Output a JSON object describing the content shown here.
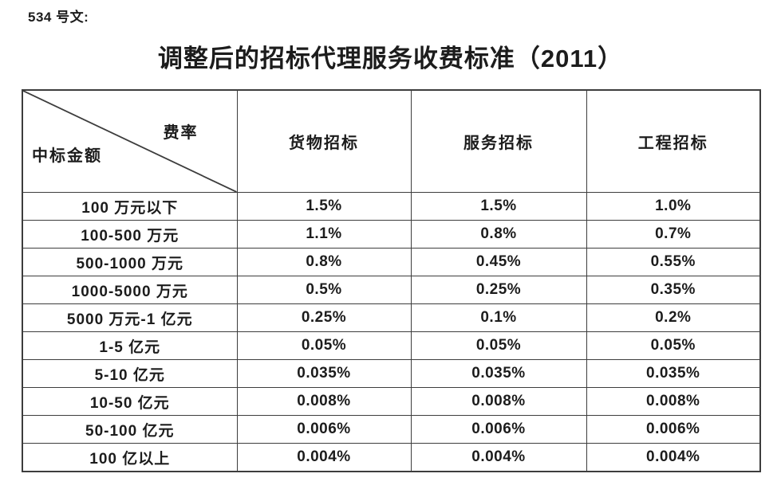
{
  "doc_label": "534 号文:",
  "title": "调整后的招标代理服务收费标准（2011）",
  "table": {
    "corner": {
      "top_right": "费率",
      "bottom_left": "中标金额"
    },
    "columns": [
      "货物招标",
      "服务招标",
      "工程招标"
    ],
    "rows": [
      {
        "label": "100 万元以下",
        "values": [
          "1.5%",
          "1.5%",
          "1.0%"
        ]
      },
      {
        "label": "100-500 万元",
        "values": [
          "1.1%",
          "0.8%",
          "0.7%"
        ]
      },
      {
        "label": "500-1000 万元",
        "values": [
          "0.8%",
          "0.45%",
          "0.55%"
        ]
      },
      {
        "label": "1000-5000 万元",
        "values": [
          "0.5%",
          "0.25%",
          "0.35%"
        ]
      },
      {
        "label": "5000 万元-1 亿元",
        "values": [
          "0.25%",
          "0.1%",
          "0.2%"
        ]
      },
      {
        "label": "1-5 亿元",
        "values": [
          "0.05%",
          "0.05%",
          "0.05%"
        ]
      },
      {
        "label": "5-10 亿元",
        "values": [
          "0.035%",
          "0.035%",
          "0.035%"
        ]
      },
      {
        "label": "10-50 亿元",
        "values": [
          "0.008%",
          "0.008%",
          "0.008%"
        ]
      },
      {
        "label": "50-100 亿元",
        "values": [
          "0.006%",
          "0.006%",
          "0.006%"
        ]
      },
      {
        "label": "100 亿以上",
        "values": [
          "0.004%",
          "0.004%",
          "0.004%"
        ]
      }
    ]
  },
  "colors": {
    "border": "#3d3d3d",
    "text": "#1c1c1c",
    "background": "#ffffff"
  }
}
